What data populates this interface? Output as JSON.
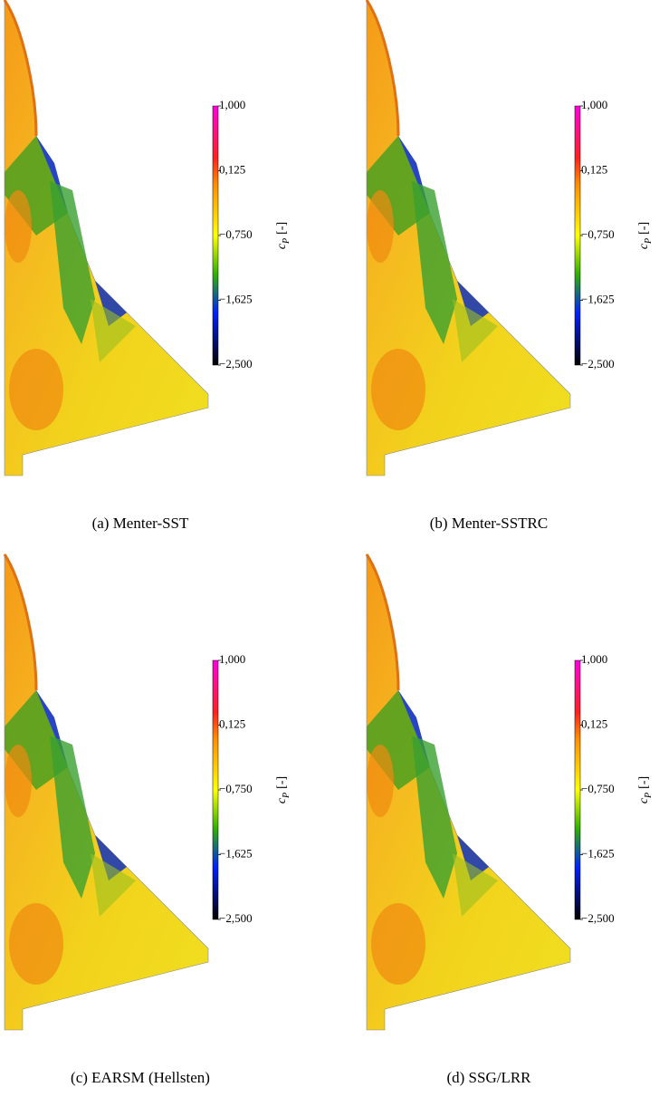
{
  "panels": [
    {
      "caption": "(a) Menter-SST",
      "colorbar": {
        "symbol": "c",
        "subscript": "P",
        "unit": "[-]",
        "lim": [
          -2.5,
          1
        ],
        "ticks": [
          {
            "value": 1,
            "label": "1,000"
          },
          {
            "value": 0.125,
            "label": "0,125"
          },
          {
            "value": -0.75,
            "label": "−0,750"
          },
          {
            "value": -1.625,
            "label": "−1,625"
          },
          {
            "value": -2.5,
            "label": "−2,500"
          }
        ]
      }
    },
    {
      "caption": "(b) Menter-SSTRC",
      "colorbar": {
        "symbol": "c",
        "subscript": "P",
        "unit": "[-]",
        "lim": [
          -2.5,
          1
        ],
        "ticks": [
          {
            "value": 1,
            "label": "1,000"
          },
          {
            "value": 0.125,
            "label": "0,125"
          },
          {
            "value": -0.75,
            "label": "−0,750"
          },
          {
            "value": -1.625,
            "label": "−1,625"
          },
          {
            "value": -2.5,
            "label": "−2,500"
          }
        ]
      }
    },
    {
      "caption": "(c) EARSM (Hellsten)",
      "colorbar": {
        "symbol": "c",
        "subscript": "P",
        "unit": "[-]",
        "lim": [
          -2.5,
          1
        ],
        "ticks": [
          {
            "value": 1,
            "label": "1,000"
          },
          {
            "value": 0.125,
            "label": "0,125"
          },
          {
            "value": -0.75,
            "label": "−0,750"
          },
          {
            "value": -1.625,
            "label": "−1,625"
          },
          {
            "value": -2.5,
            "label": "−2,500"
          }
        ]
      }
    },
    {
      "caption": "(d) SSG/LRR",
      "colorbar": {
        "symbol": "c",
        "subscript": "P",
        "unit": "[-]",
        "lim": [
          -2.5,
          1
        ],
        "ticks": [
          {
            "value": 1,
            "label": "1,000"
          },
          {
            "value": 0.125,
            "label": "0,125"
          },
          {
            "value": -0.75,
            "label": "−0,750"
          },
          {
            "value": -1.625,
            "label": "−1,625"
          },
          {
            "value": -2.5,
            "label": "−2,500"
          }
        ]
      }
    }
  ]
}
